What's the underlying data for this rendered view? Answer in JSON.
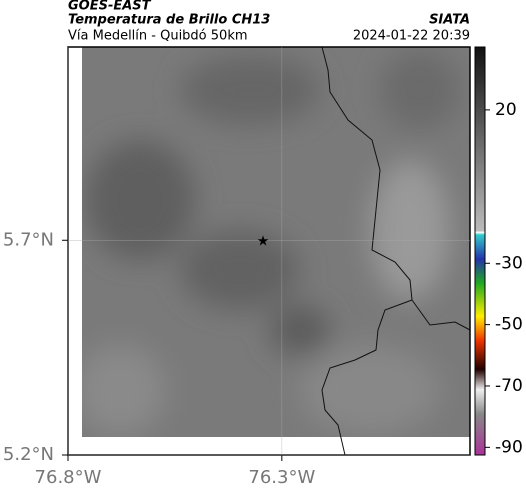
{
  "chart_data": {
    "type": "map",
    "title": "GOES-EAST",
    "subtitle": "Temperatura de Brillo CH13",
    "caption": "Vía Medellín - Quibdó 50km",
    "source": "SIATA",
    "timestamp": "2024-01-22 20:39",
    "xlim": [
      -76.8,
      -75.86
    ],
    "ylim": [
      5.2,
      6.15
    ],
    "xticks": [
      {
        "value": -76.8,
        "label": "76.8°W"
      },
      {
        "value": -76.3,
        "label": "76.3°W"
      }
    ],
    "yticks": [
      {
        "value": 5.2,
        "label": "5.2°N"
      },
      {
        "value": 5.7,
        "label": "5.7°N"
      }
    ],
    "grid": true,
    "marker": {
      "x": -76.344,
      "y": 5.7
    },
    "colorbar": {
      "lim": [
        -92.5,
        40.5
      ],
      "ticks": [
        20,
        -30,
        -50,
        -70,
        -90
      ]
    }
  }
}
